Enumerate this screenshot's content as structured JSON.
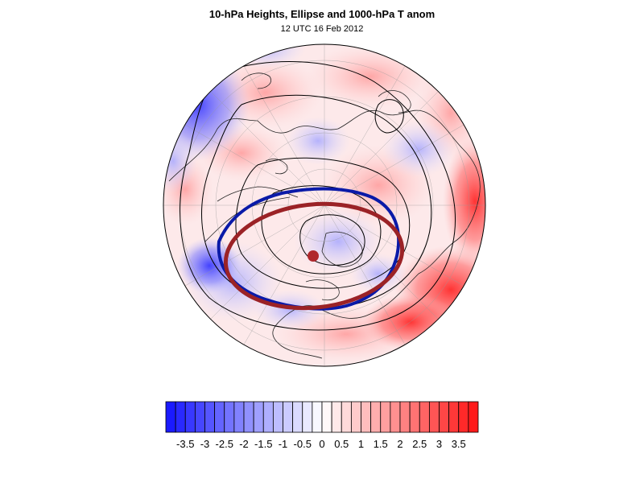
{
  "title": "10-hPa Heights, Ellipse and 1000-hPa T anom",
  "subtitle": "12 UTC 16 Feb 2012",
  "colors": {
    "negative_max": "#1a1aff",
    "neutral": "#ffffff",
    "positive_max": "#ff1a1a",
    "height_contour": "#000000",
    "polar_vortex_edge": "#0a1aa8",
    "ellipse": "#9b2226",
    "ellipse_center": "#b0282c",
    "land_outline": "#222222",
    "graticule": "#9a9a9a"
  },
  "map": {
    "projection": "north polar stereographic"
  },
  "colorbar": {
    "labels": [
      "-3.5",
      "-3",
      "-2.5",
      "-2",
      "-1.5",
      "-1",
      "-0.5",
      "0",
      "0.5",
      "1",
      "1.5",
      "2",
      "2.5",
      "3",
      "3.5"
    ],
    "range": [
      -4,
      4
    ],
    "step": 0.25
  }
}
